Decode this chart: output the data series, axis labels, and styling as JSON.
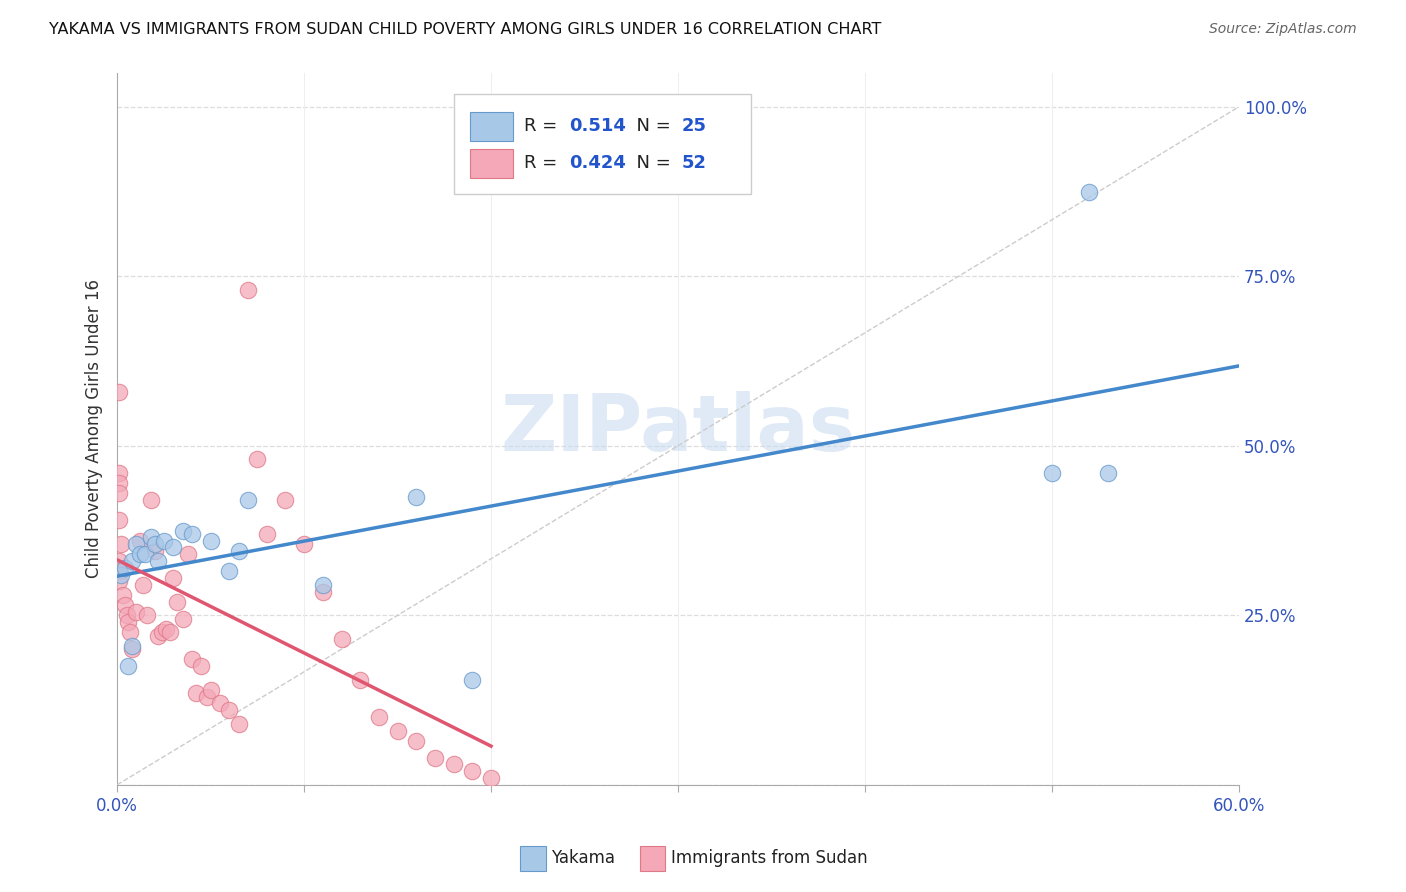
{
  "title": "YAKAMA VS IMMIGRANTS FROM SUDAN CHILD POVERTY AMONG GIRLS UNDER 16 CORRELATION CHART",
  "source": "Source: ZipAtlas.com",
  "ylabel": "Child Poverty Among Girls Under 16",
  "xlim": [
    0.0,
    0.6
  ],
  "ylim": [
    0.0,
    1.05
  ],
  "x_ticks": [
    0.0,
    0.1,
    0.2,
    0.3,
    0.4,
    0.5,
    0.6
  ],
  "x_tick_labels": [
    "0.0%",
    "",
    "",
    "",
    "",
    "",
    "60.0%"
  ],
  "y_ticks_right": [
    0.0,
    0.25,
    0.5,
    0.75,
    1.0
  ],
  "y_tick_labels_right": [
    "",
    "25.0%",
    "50.0%",
    "75.0%",
    "100.0%"
  ],
  "background_color": "#ffffff",
  "grid_color": "#dddddd",
  "watermark": "ZIPatlas",
  "yakama_color": "#a8c8e8",
  "sudan_color": "#f4a8b8",
  "yakama_edge_color": "#6699cc",
  "sudan_edge_color": "#e07888",
  "yakama_line_color": "#4488cc",
  "sudan_line_color": "#e05570",
  "yakama_R": 0.514,
  "yakama_N": 25,
  "sudan_R": 0.424,
  "sudan_N": 52,
  "yakama_scatter_x": [
    0.002,
    0.004,
    0.006,
    0.008,
    0.01,
    0.012,
    0.015,
    0.018,
    0.02,
    0.022,
    0.025,
    0.03,
    0.035,
    0.04,
    0.05,
    0.06,
    0.065,
    0.07,
    0.11,
    0.16,
    0.19,
    0.5,
    0.52,
    0.53,
    0.008
  ],
  "yakama_scatter_y": [
    0.31,
    0.32,
    0.175,
    0.33,
    0.355,
    0.34,
    0.34,
    0.365,
    0.355,
    0.33,
    0.36,
    0.35,
    0.375,
    0.37,
    0.36,
    0.315,
    0.345,
    0.42,
    0.295,
    0.425,
    0.155,
    0.46,
    0.875,
    0.46,
    0.205
  ],
  "sudan_scatter_x": [
    0.001,
    0.001,
    0.001,
    0.001,
    0.001,
    0.001,
    0.001,
    0.001,
    0.002,
    0.003,
    0.004,
    0.005,
    0.006,
    0.007,
    0.008,
    0.01,
    0.012,
    0.014,
    0.016,
    0.018,
    0.02,
    0.022,
    0.024,
    0.026,
    0.028,
    0.03,
    0.032,
    0.035,
    0.038,
    0.04,
    0.042,
    0.045,
    0.048,
    0.05,
    0.055,
    0.06,
    0.065,
    0.07,
    0.075,
    0.08,
    0.09,
    0.1,
    0.11,
    0.12,
    0.13,
    0.14,
    0.15,
    0.16,
    0.17,
    0.18,
    0.19,
    0.2
  ],
  "sudan_scatter_y": [
    0.58,
    0.46,
    0.445,
    0.43,
    0.39,
    0.33,
    0.315,
    0.3,
    0.355,
    0.28,
    0.265,
    0.25,
    0.24,
    0.225,
    0.2,
    0.255,
    0.36,
    0.295,
    0.25,
    0.42,
    0.345,
    0.22,
    0.225,
    0.23,
    0.225,
    0.305,
    0.27,
    0.245,
    0.34,
    0.185,
    0.135,
    0.175,
    0.13,
    0.14,
    0.12,
    0.11,
    0.09,
    0.73,
    0.48,
    0.37,
    0.42,
    0.355,
    0.285,
    0.215,
    0.155,
    0.1,
    0.08,
    0.065,
    0.04,
    0.03,
    0.02,
    0.01
  ]
}
